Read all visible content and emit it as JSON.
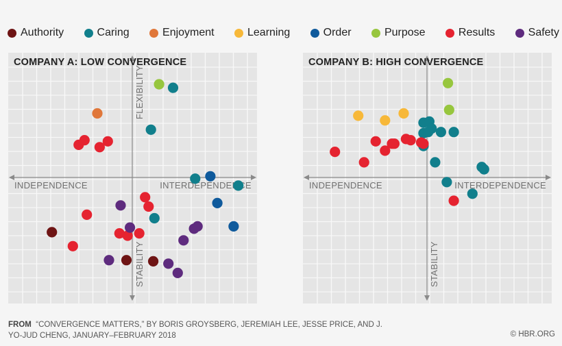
{
  "legend": [
    {
      "name": "Authority",
      "color": "#6e1414"
    },
    {
      "name": "Caring",
      "color": "#117f8c"
    },
    {
      "name": "Enjoyment",
      "color": "#e0773a"
    },
    {
      "name": "Learning",
      "color": "#f7b839"
    },
    {
      "name": "Order",
      "color": "#0f5a9c"
    },
    {
      "name": "Purpose",
      "color": "#97c63e"
    },
    {
      "name": "Results",
      "color": "#e52330"
    },
    {
      "name": "Safety",
      "color": "#5e2b7e"
    }
  ],
  "chart_data": [
    {
      "type": "scatter",
      "title": "COMPANY A: LOW CONVERGENCE",
      "xlabel_left": "INDEPENDENCE",
      "xlabel_right": "INTERDEPENDENCE",
      "ylabel_top": "FLEXIBILITY",
      "ylabel_bottom": "STABILITY",
      "xlim": [
        -1,
        1
      ],
      "ylim": [
        -1,
        1
      ],
      "grid": true,
      "series": [
        {
          "name": "Authority",
          "points": [
            [
              -0.69,
              -0.47
            ],
            [
              -0.05,
              -0.71
            ],
            [
              0.18,
              -0.72
            ]
          ]
        },
        {
          "name": "Caring",
          "points": [
            [
              0.16,
              0.41
            ],
            [
              0.35,
              0.77
            ],
            [
              0.54,
              -0.01
            ],
            [
              0.91,
              -0.07
            ],
            [
              0.19,
              -0.35
            ]
          ]
        },
        {
          "name": "Enjoyment",
          "points": [
            [
              -0.3,
              0.55
            ]
          ]
        },
        {
          "name": "Learning",
          "points": []
        },
        {
          "name": "Order",
          "points": [
            [
              0.67,
              0.01
            ],
            [
              0.73,
              -0.22
            ],
            [
              0.87,
              -0.42
            ]
          ]
        },
        {
          "name": "Purpose",
          "points": [
            [
              0.23,
              0.8
            ]
          ]
        },
        {
          "name": "Results",
          "points": [
            [
              -0.46,
              0.28
            ],
            [
              -0.41,
              0.32
            ],
            [
              -0.28,
              0.26
            ],
            [
              -0.21,
              0.31
            ],
            [
              -0.39,
              -0.32
            ],
            [
              -0.51,
              -0.59
            ],
            [
              -0.11,
              -0.48
            ],
            [
              -0.04,
              -0.5
            ],
            [
              0.06,
              -0.48
            ],
            [
              0.11,
              -0.17
            ],
            [
              0.14,
              -0.25
            ]
          ]
        },
        {
          "name": "Safety",
          "points": [
            [
              -0.1,
              -0.24
            ],
            [
              -0.02,
              -0.43
            ],
            [
              -0.2,
              -0.71
            ],
            [
              0.44,
              -0.54
            ],
            [
              0.53,
              -0.44
            ],
            [
              0.56,
              -0.42
            ],
            [
              0.31,
              -0.74
            ],
            [
              0.39,
              -0.82
            ]
          ]
        }
      ]
    },
    {
      "type": "scatter",
      "title": "COMPANY B: HIGH CONVERGENCE",
      "xlabel_left": "INDEPENDENCE",
      "xlabel_right": "INTERDEPENDENCE",
      "ylabel_top": "",
      "ylabel_bottom": "STABILITY",
      "xlim": [
        -1,
        1
      ],
      "ylim": [
        -1,
        1
      ],
      "grid": true,
      "series": [
        {
          "name": "Authority",
          "points": []
        },
        {
          "name": "Caring",
          "points": [
            [
              -0.03,
              0.47
            ],
            [
              0.02,
              0.48
            ],
            [
              0.04,
              0.42
            ],
            [
              -0.03,
              0.38
            ],
            [
              0.01,
              0.39
            ],
            [
              0.12,
              0.39
            ],
            [
              0.23,
              0.39
            ],
            [
              -0.03,
              0.27
            ],
            [
              0.07,
              0.13
            ],
            [
              0.47,
              0.09
            ],
            [
              0.49,
              0.07
            ],
            [
              0.17,
              -0.04
            ],
            [
              0.39,
              -0.14
            ]
          ]
        },
        {
          "name": "Enjoyment",
          "points": []
        },
        {
          "name": "Learning",
          "points": [
            [
              -0.59,
              0.53
            ],
            [
              -0.36,
              0.49
            ],
            [
              -0.2,
              0.55
            ]
          ]
        },
        {
          "name": "Order",
          "points": []
        },
        {
          "name": "Purpose",
          "points": [
            [
              0.18,
              0.81
            ],
            [
              0.19,
              0.58
            ]
          ]
        },
        {
          "name": "Results",
          "points": [
            [
              -0.79,
              0.22
            ],
            [
              -0.54,
              0.13
            ],
            [
              -0.44,
              0.31
            ],
            [
              -0.36,
              0.23
            ],
            [
              -0.28,
              0.29
            ],
            [
              -0.3,
              0.29
            ],
            [
              -0.18,
              0.33
            ],
            [
              -0.14,
              0.32
            ],
            [
              -0.03,
              0.29
            ],
            [
              -0.05,
              0.3
            ],
            [
              0.23,
              -0.2
            ]
          ]
        },
        {
          "name": "Safety",
          "points": []
        }
      ]
    }
  ],
  "footer": {
    "from_label": "FROM",
    "citation": "“CONVERGENCE MATTERS,” BY BORIS GROYSBERG, JEREMIAH LEE, JESSE PRICE, AND J. YO-JUD CHENG, JANUARY–FEBRUARY 2018",
    "credit": "© HBR.ORG"
  }
}
